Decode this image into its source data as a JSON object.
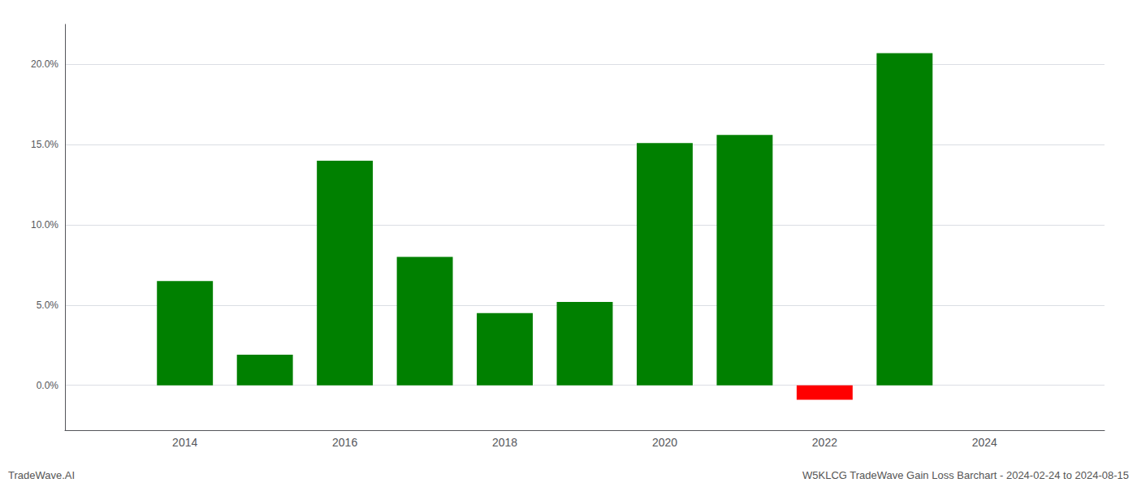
{
  "chart_data": {
    "type": "bar",
    "annotations": [
      "TradeWave.AI",
      "W5KLCG TradeWave Gain Loss Barchart - 2024-02-24 to 2024-08-15"
    ],
    "x": [
      2014,
      2015,
      2016,
      2017,
      2018,
      2019,
      2020,
      2021,
      2022,
      2023
    ],
    "values": [
      0.065,
      0.019,
      0.14,
      0.08,
      0.045,
      0.052,
      0.151,
      0.156,
      -0.009,
      0.207
    ],
    "colors": [
      "#008000",
      "#008000",
      "#008000",
      "#008000",
      "#008000",
      "#008000",
      "#008000",
      "#008000",
      "#ff0000",
      "#008000"
    ],
    "xlim": [
      2012.5,
      2025.5
    ],
    "xticks": [
      2014,
      2016,
      2018,
      2020,
      2022,
      2024
    ],
    "ylim": [
      -0.028,
      0.225
    ],
    "yticks": [
      {
        "value": 0,
        "label": "0.0%"
      },
      {
        "value": 0.05,
        "label": "5.0%"
      },
      {
        "value": 0.1,
        "label": "10.0%"
      },
      {
        "value": 0.15,
        "label": "15.0%"
      },
      {
        "value": 0.2,
        "label": "20.0%"
      }
    ],
    "grid": true
  }
}
